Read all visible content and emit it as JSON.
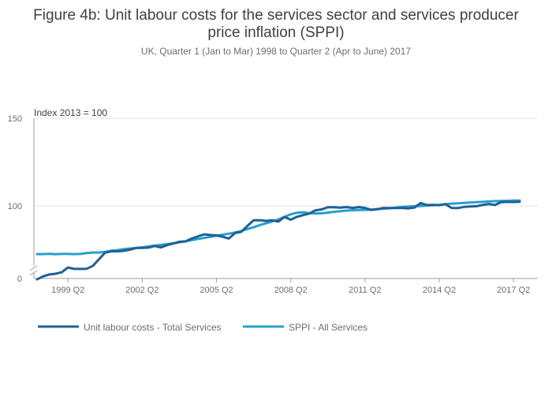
{
  "chart_data": {
    "type": "line",
    "title_line1": "Figure 4b: Unit labour costs for the services sector and services producer",
    "title_line2": "price inflation (SPPI)",
    "subtitle": "UK, Quarter 1 (Jan to Mar) 1998 to Quarter 2 (Apr to June) 2017",
    "ylabel": "Index 2013 = 100",
    "ylim": [
      0,
      150
    ],
    "y_axis_break": true,
    "y_ticks": [
      "0",
      "100",
      "150"
    ],
    "grid": true,
    "legend_position": "bottom-left",
    "x_tick_labels": [
      "1999 Q2",
      "2002 Q2",
      "2005 Q2",
      "2008 Q2",
      "2011 Q2",
      "2014 Q2",
      "2017 Q2"
    ],
    "x_tick_indices": [
      5,
      17,
      29,
      41,
      53,
      65,
      77
    ],
    "series": [
      {
        "name": "Unit labour costs - Total Services",
        "color": "#206095",
        "values": [
          50.5,
          52.5,
          53.8,
          54.3,
          55.3,
          58.5,
          57.5,
          57.5,
          57.6,
          59.5,
          64.0,
          68.5,
          69.4,
          69.4,
          69.7,
          70.5,
          71.6,
          71.7,
          71.9,
          73.0,
          72.0,
          73.6,
          74.6,
          75.8,
          76.1,
          78.0,
          79.5,
          80.8,
          80.4,
          80.1,
          79.2,
          78.0,
          81.7,
          82.5,
          86.5,
          90.3,
          90.4,
          89.9,
          90.3,
          89.4,
          92.5,
          90.7,
          92.6,
          93.8,
          94.8,
          97.0,
          97.6,
          99.1,
          99.1,
          98.8,
          99.2,
          98.6,
          99.2,
          98.6,
          97.3,
          97.8,
          98.6,
          98.5,
          98.5,
          98.6,
          98.3,
          98.9,
          101.6,
          100.5,
          100.6,
          100.4,
          101.0,
          98.6,
          98.5,
          99.3,
          99.6,
          99.8,
          100.5,
          101.1,
          100.5,
          102.1,
          102.3,
          102.2,
          102.4
        ]
      },
      {
        "name": "SPPI - All Services",
        "color": "#27a0cc",
        "values": [
          67.5,
          67.5,
          67.7,
          67.4,
          67.6,
          67.6,
          67.5,
          67.6,
          68.2,
          68.6,
          68.6,
          69.0,
          69.8,
          70.2,
          70.8,
          71.3,
          71.6,
          72.1,
          72.6,
          73.2,
          73.7,
          74.2,
          74.8,
          75.5,
          76.2,
          76.9,
          77.7,
          78.4,
          79.1,
          79.9,
          80.6,
          81.3,
          82.1,
          83.1,
          84.4,
          85.6,
          87.1,
          88.3,
          89.4,
          90.9,
          92.6,
          94.3,
          95.4,
          95.7,
          95.1,
          94.9,
          95.0,
          95.5,
          96.0,
          96.4,
          96.8,
          97.1,
          97.2,
          97.3,
          97.5,
          97.8,
          98.1,
          98.4,
          98.9,
          99.3,
          99.6,
          99.8,
          99.9,
          100.2,
          100.4,
          100.6,
          101.0,
          101.3,
          101.5,
          101.7,
          101.9,
          102.1,
          102.3,
          102.5,
          102.7,
          102.8,
          102.9,
          103.0,
          103.1
        ]
      }
    ]
  }
}
